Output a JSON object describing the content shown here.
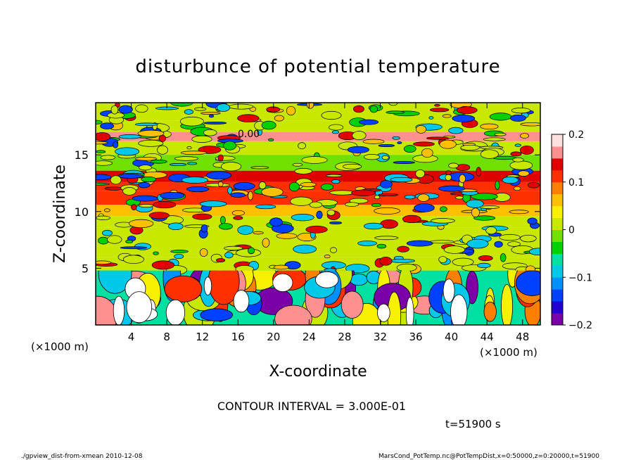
{
  "chart_data": {
    "type": "heatmap",
    "title": "disturbunce of potential temperature",
    "xlabel": "X-coordinate",
    "ylabel": "Z-coordinate",
    "x_unit": "(×1000 m)",
    "y_unit": "(×1000 m)",
    "xlim": [
      0,
      50
    ],
    "ylim": [
      0,
      19.6
    ],
    "x_ticks": [
      "4",
      "8",
      "12",
      "16",
      "20",
      "24",
      "28",
      "32",
      "36",
      "40",
      "44",
      "48"
    ],
    "x_tick_values": [
      4,
      8,
      12,
      16,
      20,
      24,
      28,
      32,
      36,
      40,
      44,
      48
    ],
    "y_ticks": [
      "5",
      "10",
      "15"
    ],
    "y_tick_values": [
      5,
      10,
      15
    ],
    "colorbar": {
      "min": -0.2,
      "max": 0.2,
      "tick_labels": [
        "0.2",
        "0.1",
        "0",
        "−0.1",
        "−0.2"
      ],
      "tick_values": [
        0.2,
        0.1,
        0,
        -0.1,
        -0.2
      ],
      "colors": [
        "#7a00a8",
        "#2200d0",
        "#0040ff",
        "#0090ff",
        "#00c8e8",
        "#00e0a0",
        "#00d000",
        "#70e000",
        "#c8e800",
        "#f8f000",
        "#ffc000",
        "#ff8000",
        "#ff3000",
        "#e00000",
        "#ff9090",
        "#ffe0e0"
      ]
    },
    "contour_interval_label": "CONTOUR INTERVAL = 3.000E-01",
    "contour_label": "0.00",
    "time_label": "t=51900 s",
    "footer_left": "./gpview_dist-from-xmean  2010-12-08",
    "footer_right": "MarsCond_PotTemp.nc@PotTempDist,x=0:50000,z=0:20000,t=51900",
    "bands": [
      {
        "z0": 18.0,
        "z1": 19.6,
        "value": 0.0
      },
      {
        "z0": 17.0,
        "z1": 18.0,
        "value": 0.02
      },
      {
        "z0": 16.2,
        "z1": 17.0,
        "value": 0.17
      },
      {
        "z0": 15.0,
        "z1": 16.2,
        "value": 0.0
      },
      {
        "z0": 13.6,
        "z1": 15.0,
        "value": -0.01
      },
      {
        "z0": 12.6,
        "z1": 13.6,
        "value": 0.15
      },
      {
        "z0": 11.8,
        "z1": 12.6,
        "value": 0.1
      },
      {
        "z0": 10.6,
        "z1": 11.8,
        "value": 0.12
      },
      {
        "z0": 9.6,
        "z1": 10.6,
        "value": 0.05
      },
      {
        "z0": 8.6,
        "z1": 9.6,
        "value": 0.02
      },
      {
        "z0": 6.0,
        "z1": 8.6,
        "value": 0.0
      },
      {
        "z0": 4.8,
        "z1": 6.0,
        "value": 0.01
      },
      {
        "z0": 0.0,
        "z1": 4.8,
        "value": -0.06
      }
    ]
  }
}
